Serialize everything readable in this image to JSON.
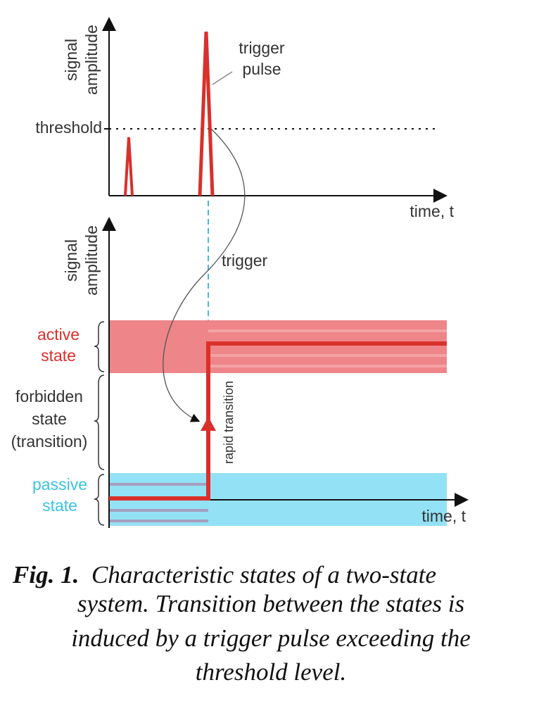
{
  "top_plot": {
    "y_axis_label": [
      "signal",
      "amplitude"
    ],
    "threshold_label": "threshold",
    "pulse_label": [
      "trigger",
      "pulse"
    ],
    "x_axis_label": "time, t"
  },
  "bottom_plot": {
    "y_axis_label": [
      "signal",
      "amplitude"
    ],
    "trigger_label": "trigger",
    "states": {
      "active": [
        "active",
        "state"
      ],
      "forbidden": [
        "forbidden",
        "state",
        "(transition)"
      ],
      "passive": [
        "passive",
        "state"
      ]
    },
    "transition_label": "rapid transition",
    "x_axis_label": "time, t"
  },
  "caption": {
    "label": "Fig. 1.",
    "lines": [
      "Characteristic states of a two-state",
      "system. Transition between the states is",
      "induced by a trigger pulse exceeding the",
      "threshold level."
    ]
  }
}
